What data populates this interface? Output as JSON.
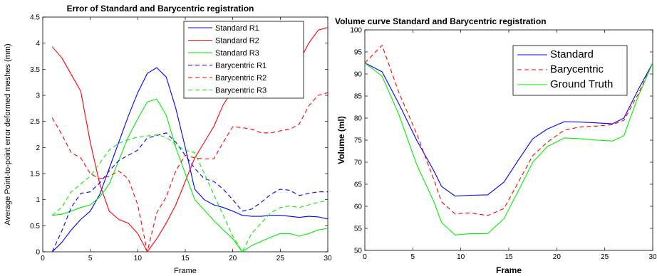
{
  "chart_data": [
    {
      "type": "line",
      "title": "Error of Standard and Barycentric registration",
      "xlabel": "Frame",
      "ylabel": "Average Point-to-point error deformed meshes (mm)",
      "xlim": [
        0,
        30
      ],
      "ylim": [
        0,
        4.5
      ],
      "xticks": [
        "0",
        "5",
        "10",
        "15",
        "20",
        "25",
        "30"
      ],
      "yticks": [
        "0",
        "0.5",
        "1",
        "1.5",
        "2",
        "2.5",
        "3",
        "3.5",
        "4",
        "4.5"
      ],
      "legend_position": "top-right",
      "x": [
        1,
        2,
        3,
        4,
        5,
        6,
        7,
        8,
        9,
        10,
        11,
        12,
        13,
        14,
        15,
        16,
        17,
        18,
        19,
        20,
        21,
        22,
        23,
        24,
        25,
        26,
        27,
        28,
        29,
        30
      ],
      "series": [
        {
          "name": "Standard R1",
          "color": "#0000ff",
          "dash": "solid",
          "values": [
            0.0,
            0.18,
            0.42,
            0.62,
            0.78,
            1.1,
            1.6,
            2.1,
            2.6,
            3.05,
            3.42,
            3.53,
            3.35,
            2.75,
            2.0,
            1.2,
            1.0,
            0.9,
            0.85,
            0.78,
            0.7,
            0.68,
            0.68,
            0.7,
            0.7,
            0.68,
            0.66,
            0.68,
            0.67,
            0.63
          ]
        },
        {
          "name": "Standard R2",
          "color": "#ff0000",
          "dash": "solid",
          "values": [
            3.93,
            3.72,
            3.4,
            3.08,
            2.1,
            1.3,
            0.78,
            0.62,
            0.55,
            0.35,
            0.0,
            0.25,
            0.55,
            0.9,
            1.35,
            1.8,
            2.1,
            2.4,
            2.82,
            3.1,
            3.35,
            3.5,
            3.5,
            3.45,
            3.42,
            3.55,
            3.65,
            4.0,
            4.25,
            4.3
          ]
        },
        {
          "name": "Standard R3",
          "color": "#00ee00",
          "dash": "solid",
          "values": [
            0.7,
            0.72,
            0.78,
            0.85,
            0.9,
            1.05,
            1.3,
            1.75,
            2.2,
            2.55,
            2.87,
            2.93,
            2.62,
            2.0,
            1.5,
            1.0,
            0.8,
            0.6,
            0.42,
            0.25,
            0.0,
            0.12,
            0.2,
            0.28,
            0.35,
            0.35,
            0.3,
            0.35,
            0.42,
            0.45
          ]
        },
        {
          "name": "Barycentric R1",
          "color": "#0000ff",
          "dash": "dashed",
          "values": [
            0.0,
            0.4,
            0.85,
            1.12,
            1.15,
            1.32,
            1.55,
            1.75,
            1.85,
            1.95,
            2.18,
            2.23,
            2.28,
            2.1,
            1.85,
            1.6,
            1.4,
            1.35,
            1.2,
            1.0,
            0.78,
            0.82,
            0.95,
            1.1,
            1.2,
            1.18,
            1.08,
            1.12,
            1.15,
            1.15
          ]
        },
        {
          "name": "Barycentric R2",
          "color": "#ff0000",
          "dash": "dashed",
          "values": [
            2.57,
            2.25,
            1.9,
            1.8,
            1.5,
            1.4,
            1.45,
            1.55,
            1.4,
            0.9,
            0.0,
            0.75,
            1.05,
            1.55,
            1.85,
            1.8,
            1.78,
            1.78,
            2.1,
            2.4,
            2.38,
            2.35,
            2.28,
            2.28,
            2.32,
            2.35,
            2.45,
            2.8,
            3.0,
            3.05
          ]
        },
        {
          "name": "Barycentric R3",
          "color": "#00ee00",
          "dash": "dashed",
          "values": [
            0.7,
            0.85,
            1.15,
            1.3,
            1.45,
            1.7,
            1.95,
            2.08,
            2.15,
            2.2,
            2.22,
            2.24,
            2.2,
            2.05,
            1.95,
            1.9,
            1.5,
            1.1,
            0.7,
            0.3,
            0.0,
            0.35,
            0.55,
            0.75,
            0.85,
            0.88,
            0.85,
            0.9,
            0.95,
            0.98
          ]
        }
      ]
    },
    {
      "type": "line",
      "title": "Volume curve Standard and Barycentric registration",
      "xlabel": "Frame",
      "ylabel": "Volume (ml)",
      "xlim": [
        0,
        30
      ],
      "ylim": [
        50,
        100
      ],
      "xticks": [
        "0",
        "5",
        "10",
        "15",
        "20",
        "25",
        "30"
      ],
      "yticks": [
        "50",
        "55",
        "60",
        "65",
        "70",
        "75",
        "80",
        "85",
        "90",
        "95",
        "100"
      ],
      "legend_position": "top-right",
      "x": [
        0,
        1.8,
        3.6,
        5.4,
        7.2,
        8.0,
        9.4,
        11.0,
        12.8,
        14.5,
        16.0,
        17.5,
        19.0,
        20.8,
        22.5,
        24.2,
        25.8,
        27.0,
        28.5,
        30
      ],
      "series": [
        {
          "name": "Standard",
          "color": "#0000ff",
          "dash": "solid",
          "values": [
            92.5,
            90.5,
            83.0,
            75.0,
            68.0,
            64.5,
            62.3,
            62.5,
            62.6,
            65.5,
            70.5,
            75.3,
            77.5,
            79.2,
            79.1,
            78.9,
            78.7,
            80.0,
            86.5,
            92.5
          ]
        },
        {
          "name": "Barycentric",
          "color": "#ff0000",
          "dash": "dashed",
          "values": [
            92.5,
            96.5,
            85.5,
            76.5,
            66.0,
            61.0,
            58.3,
            58.5,
            57.9,
            59.5,
            65.5,
            71.5,
            74.5,
            77.3,
            78.0,
            78.2,
            78.5,
            79.5,
            85.5,
            92.5
          ]
        },
        {
          "name": "Ground Truth",
          "color": "#00ee00",
          "dash": "solid",
          "values": [
            92.5,
            89.5,
            80.5,
            69.5,
            61.0,
            56.3,
            53.5,
            53.8,
            53.8,
            57.2,
            63.5,
            70.0,
            73.5,
            75.5,
            75.3,
            75.0,
            74.8,
            76.0,
            85.0,
            92.5
          ]
        }
      ]
    }
  ]
}
